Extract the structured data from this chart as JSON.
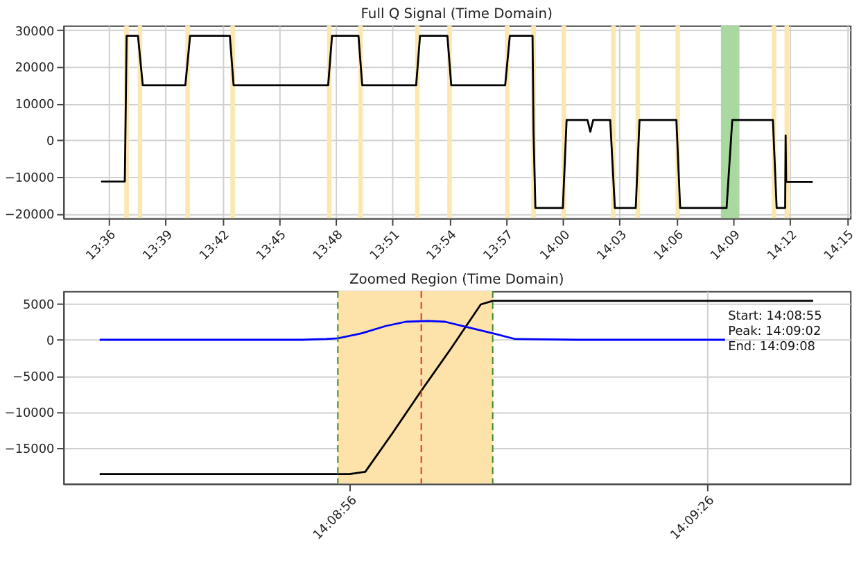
{
  "chart_data": [
    {
      "type": "line",
      "title": "Full Q Signal (Time Domain)",
      "xlim": [
        13.56,
        14.253
      ],
      "xticks": [
        {
          "value": 13.6,
          "label": "13:36"
        },
        {
          "value": 13.65,
          "label": "13:39"
        },
        {
          "value": 13.7,
          "label": "13:42"
        },
        {
          "value": 13.75,
          "label": "13:45"
        },
        {
          "value": 13.8,
          "label": "13:48"
        },
        {
          "value": 13.85,
          "label": "13:51"
        },
        {
          "value": 13.9,
          "label": "13:54"
        },
        {
          "value": 13.95,
          "label": "13:57"
        },
        {
          "value": 14.0,
          "label": "14:00"
        },
        {
          "value": 14.05,
          "label": "14:03"
        },
        {
          "value": 14.1,
          "label": "14:06"
        },
        {
          "value": 14.15,
          "label": "14:09"
        },
        {
          "value": 14.2,
          "label": "14:12"
        },
        {
          "value": 14.25,
          "label": "14:15"
        }
      ],
      "ylim": [
        -21300,
        31300
      ],
      "yticks": [
        -20000,
        -10000,
        0,
        10000,
        20000,
        30000
      ],
      "grid": true,
      "bands": [
        {
          "axis": "x",
          "from": 13.6137,
          "to": 13.6177,
          "color": "#fde7b0"
        },
        {
          "axis": "x",
          "from": 13.6255,
          "to": 13.6295,
          "color": "#fde7b0"
        },
        {
          "axis": "x",
          "from": 13.6675,
          "to": 13.6715,
          "color": "#fde7b0"
        },
        {
          "axis": "x",
          "from": 13.7072,
          "to": 13.7112,
          "color": "#fde7b0"
        },
        {
          "axis": "x",
          "from": 13.7922,
          "to": 13.7962,
          "color": "#fde7b0"
        },
        {
          "axis": "x",
          "from": 13.8198,
          "to": 13.8238,
          "color": "#fde7b0"
        },
        {
          "axis": "x",
          "from": 13.8698,
          "to": 13.8738,
          "color": "#fde7b0"
        },
        {
          "axis": "x",
          "from": 13.8982,
          "to": 13.9022,
          "color": "#fde7b0"
        },
        {
          "axis": "x",
          "from": 13.949,
          "to": 13.953,
          "color": "#fde7b0"
        },
        {
          "axis": "x",
          "from": 13.9722,
          "to": 13.9762,
          "color": "#fde7b0"
        },
        {
          "axis": "x",
          "from": 13.9988,
          "to": 14.0028,
          "color": "#fde7b0"
        },
        {
          "axis": "x",
          "from": 14.0425,
          "to": 14.0465,
          "color": "#fde7b0"
        },
        {
          "axis": "x",
          "from": 14.064,
          "to": 14.068,
          "color": "#fde7b0"
        },
        {
          "axis": "x",
          "from": 14.0992,
          "to": 14.1032,
          "color": "#fde7b0"
        },
        {
          "axis": "x",
          "from": 14.1392,
          "to": 14.1555,
          "color": "#a9d8a0"
        },
        {
          "axis": "x",
          "from": 14.184,
          "to": 14.188,
          "color": "#fde7b0"
        },
        {
          "axis": "x",
          "from": 14.1952,
          "to": 14.1992,
          "color": "#fde7b0"
        }
      ],
      "series": [
        {
          "color": "#000000",
          "x": [
            13.5933,
            13.6142,
            13.6158,
            13.6258,
            13.63,
            13.6675,
            13.6717,
            13.7067,
            13.71,
            13.7933,
            13.7967,
            13.82,
            13.8233,
            13.8708,
            13.8742,
            13.8983,
            13.9017,
            13.9492,
            13.9533,
            13.9733,
            13.9742,
            13.9758,
            14.0,
            14.0033,
            14.0217,
            14.0242,
            14.0267,
            14.0417,
            14.0458,
            14.0642,
            14.0675,
            14.1,
            14.1033,
            14.1442,
            14.1492,
            14.185,
            14.1883,
            14.1958,
            14.1962,
            14.1967,
            14.22
          ],
          "values": [
            -11300,
            -11300,
            28500,
            28500,
            15000,
            15000,
            28500,
            28500,
            15000,
            15000,
            28500,
            28500,
            15000,
            15000,
            28500,
            28500,
            15000,
            15000,
            28500,
            28500,
            2000,
            -18500,
            -18500,
            5500,
            5500,
            2300,
            5500,
            5500,
            -18500,
            -18500,
            5500,
            5500,
            -18500,
            -18500,
            5500,
            5500,
            -18500,
            -18500,
            1300,
            -11400,
            -11400
          ]
        }
      ]
    },
    {
      "type": "line",
      "title": "Zoomed Region (Time Domain)",
      "xlim": [
        14.142208,
        14.160556
      ],
      "xticks": [
        {
          "value": 14.148889,
          "label": "14:08:56"
        },
        {
          "value": 14.157222,
          "label": "14:09:26"
        }
      ],
      "ylim": [
        -19950,
        6750
      ],
      "yticks": [
        -15000,
        -10000,
        -5000,
        0,
        5000
      ],
      "grid": true,
      "bands": [
        {
          "axis": "x",
          "from": 14.148611,
          "to": 14.152222,
          "color": "#fde3aa"
        }
      ],
      "ref_lines": [
        {
          "axis": "x",
          "value": 14.148611,
          "color": "#3a8a2a",
          "line_style": "dashed"
        },
        {
          "axis": "x",
          "value": 14.150556,
          "color": "#e03030",
          "line_style": "dashed"
        },
        {
          "axis": "x",
          "value": 14.152222,
          "color": "#3a8a2a",
          "line_style": "dashed"
        }
      ],
      "annotations": [
        "Start: 14:08:55",
        "Peak: 14:09:02",
        "End:  14:09:08"
      ],
      "series": [
        {
          "color": "#000000",
          "x": [
            14.143056,
            14.144444,
            14.145833,
            14.147222,
            14.148611,
            14.148889,
            14.14925,
            14.149889,
            14.150528,
            14.15125,
            14.151944,
            14.152222,
            14.154167,
            14.155556,
            14.156944,
            14.158333,
            14.159694
          ],
          "values": [
            -18600,
            -18600,
            -18600,
            -18600,
            -18600,
            -18600,
            -18300,
            -12900,
            -7300,
            -1200,
            4900,
            5400,
            5400,
            5400,
            5400,
            5400,
            5400
          ]
        },
        {
          "color": "#0000ff",
          "x": [
            14.143056,
            14.145833,
            14.147778,
            14.148333,
            14.148611,
            14.149167,
            14.149722,
            14.150194,
            14.150722,
            14.151111,
            14.151667,
            14.152222,
            14.15275,
            14.154167,
            14.157639
          ],
          "values": [
            0,
            0,
            0,
            100,
            200,
            900,
            1900,
            2500,
            2600,
            2500,
            1700,
            900,
            100,
            0,
            0
          ]
        }
      ]
    }
  ]
}
